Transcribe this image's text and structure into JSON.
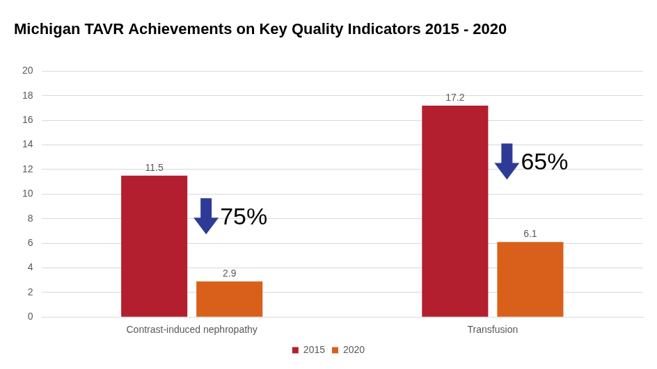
{
  "chart_data": {
    "type": "bar",
    "title": "Michigan TAVR Achievements on Key Quality Indicators 2015 - 2020",
    "categories": [
      "Contrast-induced nephropathy",
      "Transfusion"
    ],
    "series": [
      {
        "name": "2015",
        "color": "#b31f2e",
        "values": [
          11.5,
          17.2
        ]
      },
      {
        "name": "2020",
        "color": "#d9601a",
        "values": [
          2.9,
          6.1
        ]
      }
    ],
    "annotations": [
      "75%",
      "65%"
    ],
    "ylim": [
      0,
      20
    ],
    "yticks": [
      0,
      2,
      4,
      6,
      8,
      10,
      12,
      14,
      16,
      18,
      20
    ],
    "grid": true,
    "legend": "bottom",
    "data_labels": true
  }
}
